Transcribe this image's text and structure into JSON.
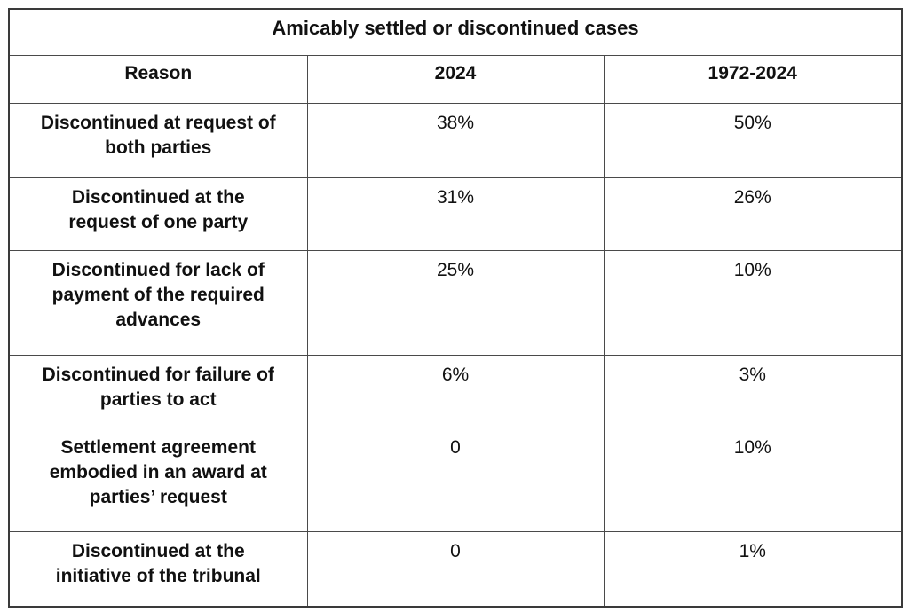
{
  "table": {
    "title": "Amicably settled or discontinued cases",
    "columns": {
      "reason": "Reason",
      "y2024": "2024",
      "hist": "1972-2024"
    },
    "rows": [
      {
        "reason": "Discontinued at request of\nboth parties",
        "y2024": "38%",
        "hist": "50%"
      },
      {
        "reason": "Discontinued at the\nrequest of one party",
        "y2024": "31%",
        "hist": "26%"
      },
      {
        "reason": "Discontinued for lack of\npayment of the required\nadvances",
        "y2024": "25%",
        "hist": "10%"
      },
      {
        "reason": "Discontinued for failure of\nparties to act",
        "y2024": "6%",
        "hist": "3%"
      },
      {
        "reason": "Settlement agreement\nembodied in an award at\nparties’ request",
        "y2024": "0",
        "hist": "10%"
      },
      {
        "reason": "Discontinued at the\ninitiative of the tribunal",
        "y2024": "0",
        "hist": "1%"
      }
    ]
  },
  "chart_data": {
    "type": "table",
    "title": "Amicably settled or discontinued cases",
    "columns": [
      "Reason",
      "2024",
      "1972-2024"
    ],
    "rows": [
      [
        "Discontinued at request of both parties",
        "38%",
        "50%"
      ],
      [
        "Discontinued at the request of one party",
        "31%",
        "26%"
      ],
      [
        "Discontinued for lack of payment of the required advances",
        "25%",
        "10%"
      ],
      [
        "Discontinued for failure of parties to act",
        "6%",
        "3%"
      ],
      [
        "Settlement agreement embodied in an award at parties’ request",
        "0",
        "10%"
      ],
      [
        "Discontinued at the initiative of the tribunal",
        "0",
        "1%"
      ]
    ],
    "border_color": "#3a3a3a",
    "text_color": "#111111"
  }
}
